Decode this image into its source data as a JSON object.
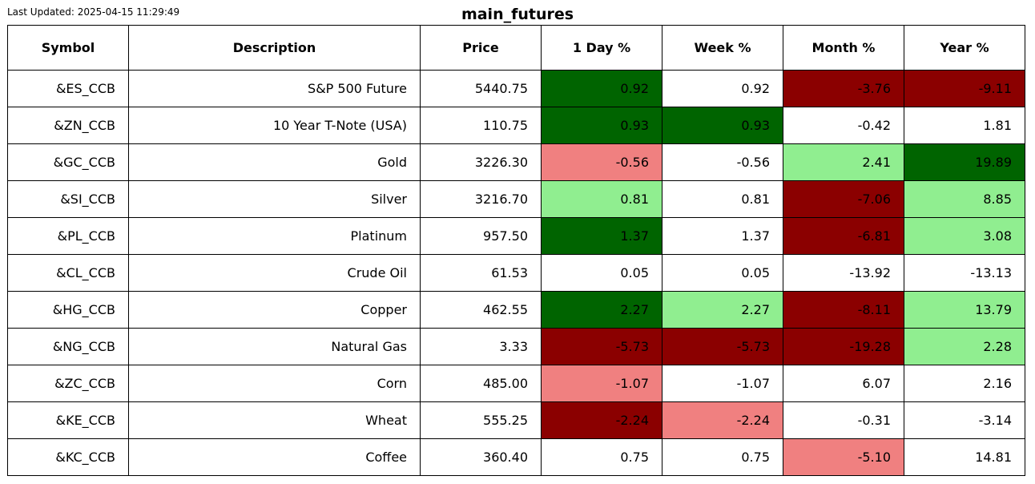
{
  "last_updated": "Last Updated: 2025-04-15 11:29:49",
  "title": "main_futures",
  "colors": {
    "strong_positive": "#006400",
    "positive": "#90ee90",
    "negative": "#f08080",
    "strong_negative": "#8b0000",
    "neutral": "#ffffff"
  },
  "chart_data": {
    "type": "table",
    "title": "main_futures",
    "columns": [
      "Symbol",
      "Description",
      "Price",
      "1 Day %",
      "Week %",
      "Month %",
      "Year %"
    ],
    "rows": [
      {
        "cells": [
          "&ES_CCB",
          "S&P 500 Future",
          "5440.75",
          "0.92",
          "0.92",
          "-3.76",
          "-9.11"
        ],
        "shading": [
          "neutral",
          "neutral",
          "neutral",
          "strong_positive",
          "neutral",
          "strong_negative",
          "strong_negative"
        ]
      },
      {
        "cells": [
          "&ZN_CCB",
          "10 Year T-Note (USA)",
          "110.75",
          "0.93",
          "0.93",
          "-0.42",
          "1.81"
        ],
        "shading": [
          "neutral",
          "neutral",
          "neutral",
          "strong_positive",
          "strong_positive",
          "neutral",
          "neutral"
        ]
      },
      {
        "cells": [
          "&GC_CCB",
          "Gold",
          "3226.30",
          "-0.56",
          "-0.56",
          "2.41",
          "19.89"
        ],
        "shading": [
          "neutral",
          "neutral",
          "neutral",
          "negative",
          "neutral",
          "positive",
          "strong_positive"
        ]
      },
      {
        "cells": [
          "&SI_CCB",
          "Silver",
          "3216.70",
          "0.81",
          "0.81",
          "-7.06",
          "8.85"
        ],
        "shading": [
          "neutral",
          "neutral",
          "neutral",
          "positive",
          "neutral",
          "strong_negative",
          "positive"
        ]
      },
      {
        "cells": [
          "&PL_CCB",
          "Platinum",
          "957.50",
          "1.37",
          "1.37",
          "-6.81",
          "3.08"
        ],
        "shading": [
          "neutral",
          "neutral",
          "neutral",
          "strong_positive",
          "neutral",
          "strong_negative",
          "positive"
        ]
      },
      {
        "cells": [
          "&CL_CCB",
          "Crude Oil",
          "61.53",
          "0.05",
          "0.05",
          "-13.92",
          "-13.13"
        ],
        "shading": [
          "neutral",
          "neutral",
          "neutral",
          "neutral",
          "neutral",
          "neutral",
          "neutral"
        ]
      },
      {
        "cells": [
          "&HG_CCB",
          "Copper",
          "462.55",
          "2.27",
          "2.27",
          "-8.11",
          "13.79"
        ],
        "shading": [
          "neutral",
          "neutral",
          "neutral",
          "strong_positive",
          "positive",
          "strong_negative",
          "positive"
        ]
      },
      {
        "cells": [
          "&NG_CCB",
          "Natural Gas",
          "3.33",
          "-5.73",
          "-5.73",
          "-19.28",
          "2.28"
        ],
        "shading": [
          "neutral",
          "neutral",
          "neutral",
          "strong_negative",
          "strong_negative",
          "strong_negative",
          "positive"
        ]
      },
      {
        "cells": [
          "&ZC_CCB",
          "Corn",
          "485.00",
          "-1.07",
          "-1.07",
          "6.07",
          "2.16"
        ],
        "shading": [
          "neutral",
          "neutral",
          "neutral",
          "negative",
          "neutral",
          "neutral",
          "neutral"
        ]
      },
      {
        "cells": [
          "&KE_CCB",
          "Wheat",
          "555.25",
          "-2.24",
          "-2.24",
          "-0.31",
          "-3.14"
        ],
        "shading": [
          "neutral",
          "neutral",
          "neutral",
          "strong_negative",
          "negative",
          "neutral",
          "neutral"
        ]
      },
      {
        "cells": [
          "&KC_CCB",
          "Coffee",
          "360.40",
          "0.75",
          "0.75",
          "-5.10",
          "14.81"
        ],
        "shading": [
          "neutral",
          "neutral",
          "neutral",
          "neutral",
          "neutral",
          "negative",
          "neutral"
        ]
      }
    ]
  }
}
